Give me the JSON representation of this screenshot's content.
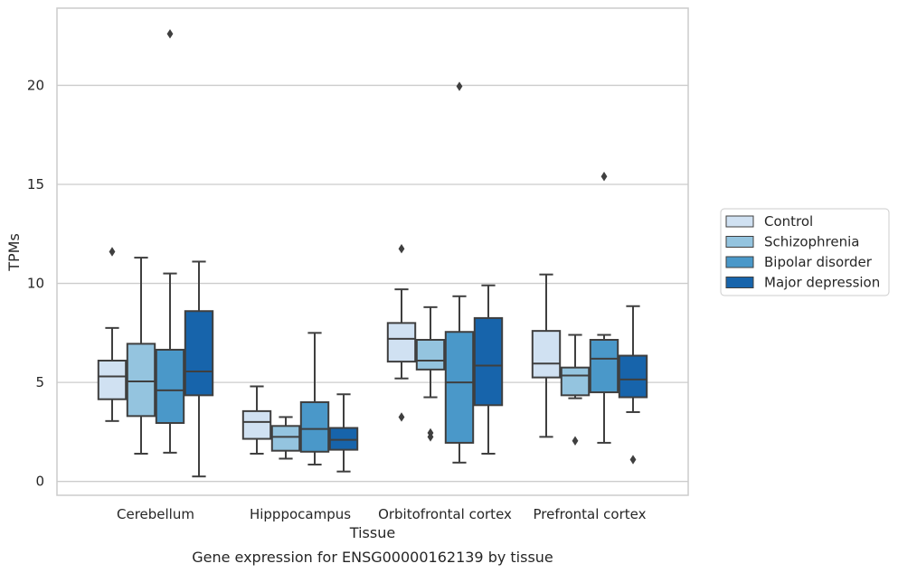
{
  "chart_data": {
    "type": "box",
    "title": "",
    "caption": "Gene expression for ENSG00000162139 by tissue",
    "xlabel": "Tissue",
    "ylabel": "TPMs",
    "ylim": [
      -0.7,
      23.9
    ],
    "yticks": [
      0,
      5,
      10,
      15,
      20
    ],
    "grid": "horizontal",
    "legend_position": "right",
    "categories": [
      "Cerebellum",
      "Hipppocampus",
      "Orbitofrontal cortex",
      "Prefrontal cortex"
    ],
    "series": [
      {
        "name": "Control",
        "color": "#d0e1f2",
        "boxes": [
          {
            "whisker_low": 3.05,
            "q1": 4.15,
            "median": 5.3,
            "q3": 6.1,
            "whisker_high": 7.75,
            "outliers": [
              11.6
            ]
          },
          {
            "whisker_low": 1.4,
            "q1": 2.15,
            "median": 3.0,
            "q3": 3.55,
            "whisker_high": 4.8,
            "outliers": []
          },
          {
            "whisker_low": 5.2,
            "q1": 6.05,
            "median": 7.2,
            "q3": 8.0,
            "whisker_high": 9.7,
            "outliers": [
              11.75,
              3.25
            ]
          },
          {
            "whisker_low": 2.25,
            "q1": 5.25,
            "median": 5.95,
            "q3": 7.6,
            "whisker_high": 10.45,
            "outliers": []
          }
        ]
      },
      {
        "name": "Schizophrenia",
        "color": "#94c4df",
        "boxes": [
          {
            "whisker_low": 1.4,
            "q1": 3.3,
            "median": 5.05,
            "q3": 6.95,
            "whisker_high": 11.3,
            "outliers": []
          },
          {
            "whisker_low": 1.15,
            "q1": 1.55,
            "median": 2.25,
            "q3": 2.8,
            "whisker_high": 3.25,
            "outliers": []
          },
          {
            "whisker_low": 4.25,
            "q1": 5.65,
            "median": 6.1,
            "q3": 7.15,
            "whisker_high": 8.8,
            "outliers": [
              2.45,
              2.25
            ]
          },
          {
            "whisker_low": 4.2,
            "q1": 4.35,
            "median": 5.35,
            "q3": 5.75,
            "whisker_high": 7.4,
            "outliers": [
              2.05
            ]
          }
        ]
      },
      {
        "name": "Bipolar disorder",
        "color": "#4a98c9",
        "boxes": [
          {
            "whisker_low": 1.45,
            "q1": 2.95,
            "median": 4.6,
            "q3": 6.65,
            "whisker_high": 10.5,
            "outliers": [
              22.6
            ]
          },
          {
            "whisker_low": 0.85,
            "q1": 1.5,
            "median": 2.65,
            "q3": 4.0,
            "whisker_high": 7.5,
            "outliers": []
          },
          {
            "whisker_low": 0.95,
            "q1": 1.95,
            "median": 5.0,
            "q3": 7.55,
            "whisker_high": 9.35,
            "outliers": [
              19.95
            ]
          },
          {
            "whisker_low": 1.95,
            "q1": 4.5,
            "median": 6.2,
            "q3": 7.15,
            "whisker_high": 7.4,
            "outliers": [
              15.4
            ]
          }
        ]
      },
      {
        "name": "Major depression",
        "color": "#1764ab",
        "boxes": [
          {
            "whisker_low": 0.25,
            "q1": 4.35,
            "median": 5.55,
            "q3": 8.6,
            "whisker_high": 11.1,
            "outliers": []
          },
          {
            "whisker_low": 0.5,
            "q1": 1.6,
            "median": 2.1,
            "q3": 2.7,
            "whisker_high": 4.4,
            "outliers": []
          },
          {
            "whisker_low": 1.4,
            "q1": 3.85,
            "median": 5.85,
            "q3": 8.25,
            "whisker_high": 9.9,
            "outliers": []
          },
          {
            "whisker_low": 3.5,
            "q1": 4.25,
            "median": 5.15,
            "q3": 6.35,
            "whisker_high": 8.85,
            "outliers": [
              1.1
            ]
          }
        ]
      }
    ]
  }
}
